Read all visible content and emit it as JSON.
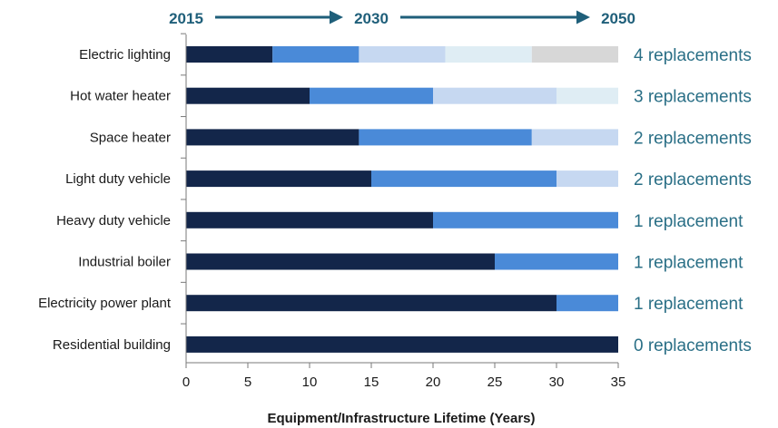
{
  "chart_data": {
    "type": "bar",
    "orientation": "horizontal",
    "stacked": true,
    "categories": [
      "Electric lighting",
      "Hot water heater",
      "Space heater",
      "Light duty vehicle",
      "Heavy duty vehicle",
      "Industrial boiler",
      "Electricity power plant",
      "Residential building"
    ],
    "segments": [
      [
        7,
        7,
        7,
        7,
        7
      ],
      [
        10,
        10,
        10,
        5
      ],
      [
        14,
        14,
        7
      ],
      [
        15,
        15,
        5
      ],
      [
        20,
        15
      ],
      [
        25,
        10
      ],
      [
        30,
        5
      ],
      [
        35
      ]
    ],
    "segment_colors": [
      "#13264a",
      "#4a8ad8",
      "#c6d8f1",
      "#dfedf4",
      "#d7d7d7"
    ],
    "replacement_labels": [
      "4 replacements",
      "3 replacements",
      "2 replacements",
      "2 replacements",
      "1 replacement",
      "1 replacement",
      "1 replacement",
      "0 replacements"
    ],
    "timeline": {
      "years": [
        "2015",
        "2030",
        "2050"
      ],
      "year_positions": [
        0,
        15,
        35
      ],
      "color": "#1f5f7a"
    },
    "xlabel": "Equipment/Infrastructure Lifetime (Years)",
    "ylabel": "",
    "xlim": [
      0,
      35
    ],
    "xticks": [
      0,
      5,
      10,
      15,
      20,
      25,
      30,
      35
    ],
    "grid": false
  }
}
